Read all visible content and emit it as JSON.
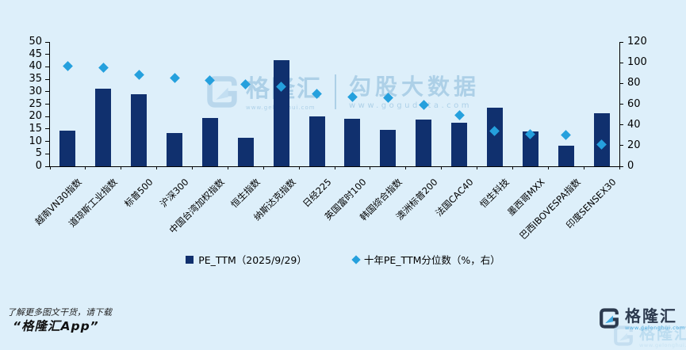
{
  "colors": {
    "background": "#ddeffa",
    "bar": "#10306e",
    "marker": "#25a0dd",
    "axis": "#000000",
    "logo_navy": "#2c3a4e",
    "logo_blue": "#3fa9e0",
    "watermark": "#86b7d9"
  },
  "chart_data": {
    "type": "bar",
    "categories": [
      "越南VN30指数",
      "道琼斯工业指数",
      "标普500",
      "沪深300",
      "中国台湾加权指数",
      "恒生指数",
      "纳斯达克指数",
      "日经225",
      "英国富时100",
      "韩国综合指数",
      "澳洲标普200",
      "法国CAC40",
      "恒生科技",
      "墨西哥MXX",
      "巴西IBOVESPA指数",
      "印度SENSEX30"
    ],
    "series": [
      {
        "name": "PE_TTM（2025/9/29）",
        "type": "bar",
        "axis": "left",
        "values": [
          14.3,
          31.2,
          29.0,
          13.4,
          19.5,
          11.4,
          42.6,
          20.1,
          19.1,
          14.7,
          18.9,
          17.5,
          23.5,
          14.0,
          8.2,
          21.4
        ]
      },
      {
        "name": "十年PE_TTM分位数（%，右）",
        "type": "scatter",
        "axis": "right",
        "values": [
          97,
          95,
          88,
          85,
          83,
          79,
          77,
          70,
          67,
          66,
          59,
          49,
          34,
          31,
          30,
          21
        ]
      }
    ],
    "left_axis": {
      "min": 0,
      "max": 50,
      "ticks": [
        0,
        5,
        10,
        15,
        20,
        25,
        30,
        35,
        40,
        45,
        50
      ]
    },
    "right_axis": {
      "min": 0,
      "max": 120,
      "ticks": [
        0,
        20,
        40,
        60,
        80,
        100,
        120
      ]
    },
    "grid": false,
    "legend_position": "bottom",
    "title": ""
  },
  "legend": [
    {
      "label": "PE_TTM（2025/9/29）",
      "marker": "square"
    },
    {
      "label": "十年PE_TTM分位数（%，右）",
      "marker": "diamond"
    }
  ],
  "watermark": {
    "brand": "格隆汇",
    "brand_url": "www.gelonghui.com",
    "product": "勾股大数据",
    "product_url": "www.gogudata.com"
  },
  "footer": {
    "note": "了解更多图文干货，请下载",
    "app": "“格隆汇App”",
    "brand": "格隆汇",
    "brand_url": "www.gelonghui.com"
  }
}
